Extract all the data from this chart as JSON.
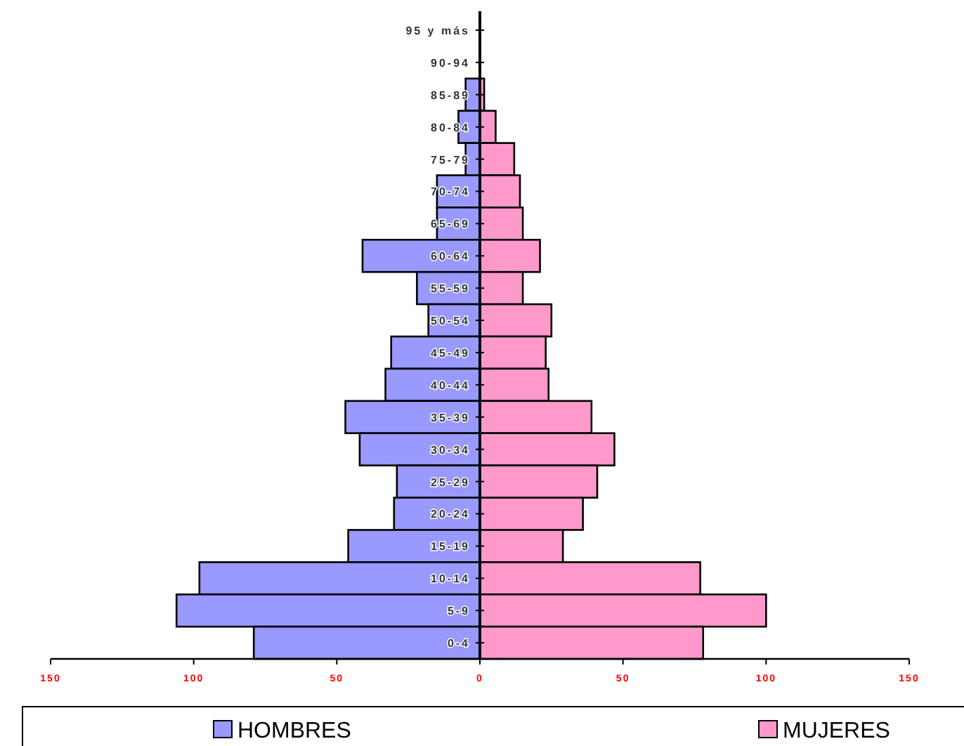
{
  "chart_data": {
    "type": "bar",
    "orientation": "horizontal",
    "categories": [
      "95 y más",
      "90-94",
      "85-89",
      "80-84",
      "75-79",
      "70-74",
      "65-69",
      "60-64",
      "55-59",
      "50-54",
      "45-49",
      "40-44",
      "35-39",
      "30-34",
      "25-29",
      "20-24",
      "15-19",
      "10-14",
      "5-9",
      "0-4"
    ],
    "series": [
      {
        "name": "HOMBRES",
        "color": "#9999ff",
        "values": [
          0,
          0,
          -5,
          -7.5,
          -5,
          -15,
          -15,
          -41,
          -22,
          -18,
          -31,
          -33,
          -47,
          -42,
          -29,
          -30,
          -46,
          -98,
          -106,
          -79
        ]
      },
      {
        "name": "MUJERES",
        "color": "#ff99cc",
        "values": [
          0,
          0,
          1.5,
          5.5,
          12,
          14,
          15,
          21,
          15,
          25,
          23,
          24,
          39,
          47,
          41,
          36,
          29,
          77,
          100,
          78
        ]
      }
    ],
    "xlim": [
      -150,
      150
    ],
    "xticks": [
      {
        "value": -150,
        "label": "150"
      },
      {
        "value": -100,
        "label": "100"
      },
      {
        "value": -50,
        "label": "50"
      },
      0,
      50,
      100,
      150
    ],
    "stacked": true,
    "grid": false,
    "legend": "bottom"
  }
}
